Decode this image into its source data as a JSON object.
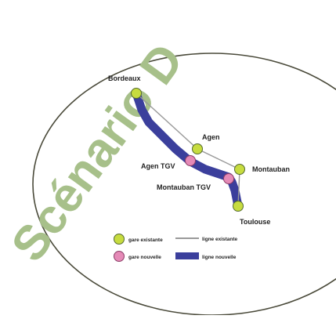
{
  "title": "Scénario D",
  "colors": {
    "title": "#a7c08a",
    "circle_stroke": "#4a4a3a",
    "existing_line": "#9a9a9a",
    "new_line": "#3b3f9c",
    "existing_station": "#c7dc3f",
    "new_station": "#e58ab7",
    "label": "#222222"
  },
  "stations": {
    "bordeaux": "Bordeaux",
    "agen": "Agen",
    "agen_tgv": "Agen TGV",
    "montauban": "Montauban",
    "montauban_tgv": "Montauban TGV",
    "toulouse": "Toulouse"
  },
  "legend": {
    "existing_station": "gare existante",
    "new_station": "gare nouvelle",
    "existing_line": "ligne existante",
    "new_line": "ligne nouvelle"
  }
}
